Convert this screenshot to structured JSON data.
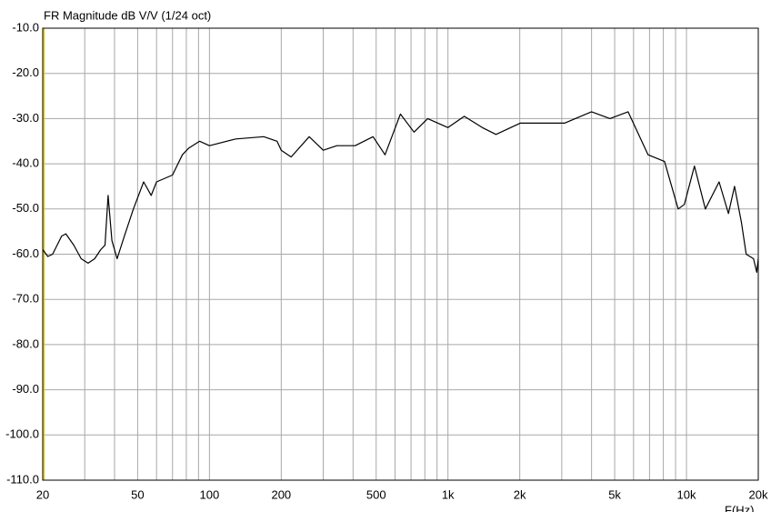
{
  "chart_data": {
    "type": "line",
    "title": "FR Magnitude dB V/V (1/24 oct)",
    "x_label": "F(Hz)",
    "log_x": true,
    "grid": true,
    "xlim": [
      20,
      20000
    ],
    "ylim": [
      -110,
      -10
    ],
    "xticks": [
      20,
      50,
      100,
      200,
      500,
      {
        "value": 1000,
        "label": "1k"
      },
      {
        "value": 2000,
        "label": "2k"
      },
      {
        "value": 5000,
        "label": "5k"
      },
      {
        "value": 10000,
        "label": "10k"
      },
      {
        "value": 20000,
        "label": "20k"
      }
    ],
    "xminor": [
      30,
      40,
      60,
      70,
      80,
      90,
      300,
      400,
      600,
      700,
      800,
      900,
      3000,
      4000,
      6000,
      7000,
      8000,
      9000
    ],
    "yticks": [
      {
        "value": -10,
        "label": "-10.0"
      },
      {
        "value": -20,
        "label": "-20.0"
      },
      {
        "value": -30,
        "label": "-30.0"
      },
      {
        "value": -40,
        "label": "-40.0"
      },
      {
        "value": -50,
        "label": "-50.0"
      },
      {
        "value": -60,
        "label": "-60.0"
      },
      {
        "value": -70,
        "label": "-70.0"
      },
      {
        "value": -80,
        "label": "-80.0"
      },
      {
        "value": -90,
        "label": "-90.0"
      },
      {
        "value": -100,
        "label": "-100.0"
      },
      {
        "value": -110,
        "label": "-110.0"
      }
    ],
    "x": [
      20,
      21,
      22,
      24,
      25,
      27,
      29,
      31,
      33,
      35,
      36.5,
      37.6,
      39,
      41,
      44,
      48,
      53,
      57,
      60,
      70,
      77,
      82,
      91,
      100,
      129,
      169,
      192,
      200,
      220,
      262,
      300,
      342,
      408,
      485,
      545,
      632,
      721,
      822,
      1000,
      1170,
      1394,
      1590,
      2010,
      2580,
      3080,
      4000,
      4780,
      5690,
      6900,
      8090,
      9230,
      9800,
      10800,
      12000,
      13700,
      15000,
      15900,
      17000,
      17800,
      19100,
      19700,
      20000
    ],
    "series": [
      {
        "name": "FR",
        "color": "#000000",
        "values": [
          -59,
          -60.5,
          -60,
          -56,
          -55.5,
          -58,
          -61,
          -62,
          -61,
          -59,
          -58,
          -47,
          -57,
          -61,
          -56,
          -50,
          -44,
          -47,
          -44,
          -42.5,
          -38,
          -36.5,
          -35,
          -36,
          -34.5,
          -34,
          -35,
          -37,
          -38.5,
          -34,
          -37,
          -36,
          -36,
          -34,
          -38,
          -29,
          -33,
          -30,
          -32,
          -29.5,
          -32,
          -33.5,
          -31,
          -31,
          -31,
          -28.5,
          -30,
          -28.5,
          -38,
          -39.5,
          -50,
          -49,
          -40.5,
          -50,
          -44,
          -51,
          -45,
          -53,
          -60,
          -61,
          -64,
          -61
        ]
      }
    ]
  }
}
